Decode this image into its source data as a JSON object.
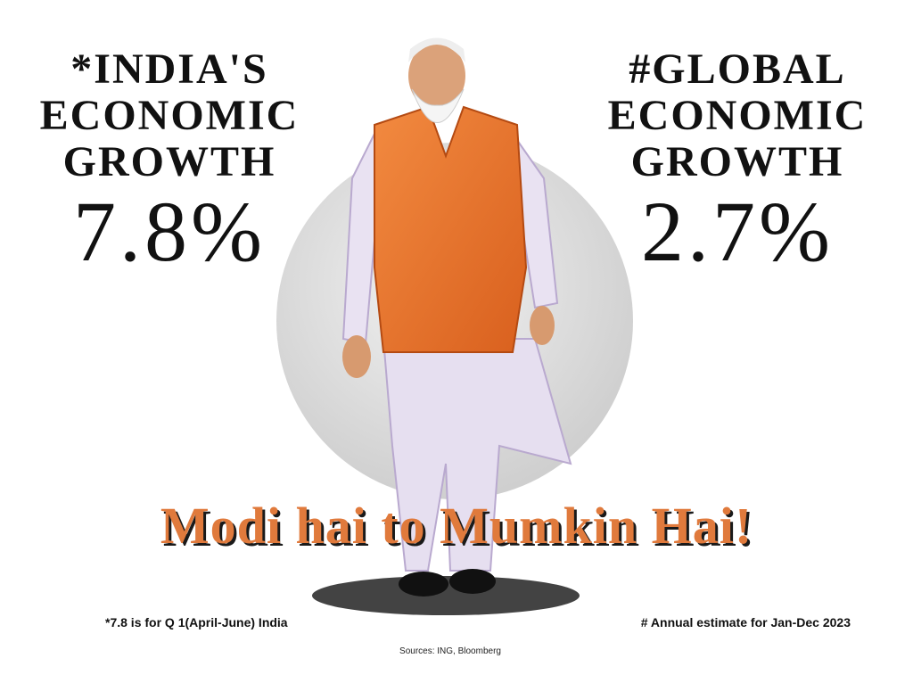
{
  "left_stat": {
    "label_lines": [
      "*INDIA'S",
      "ECONOMIC",
      "GROWTH"
    ],
    "value": "7.8%"
  },
  "right_stat": {
    "label_lines": [
      "#GLOBAL",
      "ECONOMIC",
      "GROWTH"
    ],
    "value": "2.7%"
  },
  "slogan": "Modi hai to Mumkin Hai!",
  "footnotes": [
    "*7.8 is for Q 1(April-June) India",
    "# Annual estimate for Jan-Dec 2023"
  ],
  "sources": "Sources: ING, Bloomberg"
}
